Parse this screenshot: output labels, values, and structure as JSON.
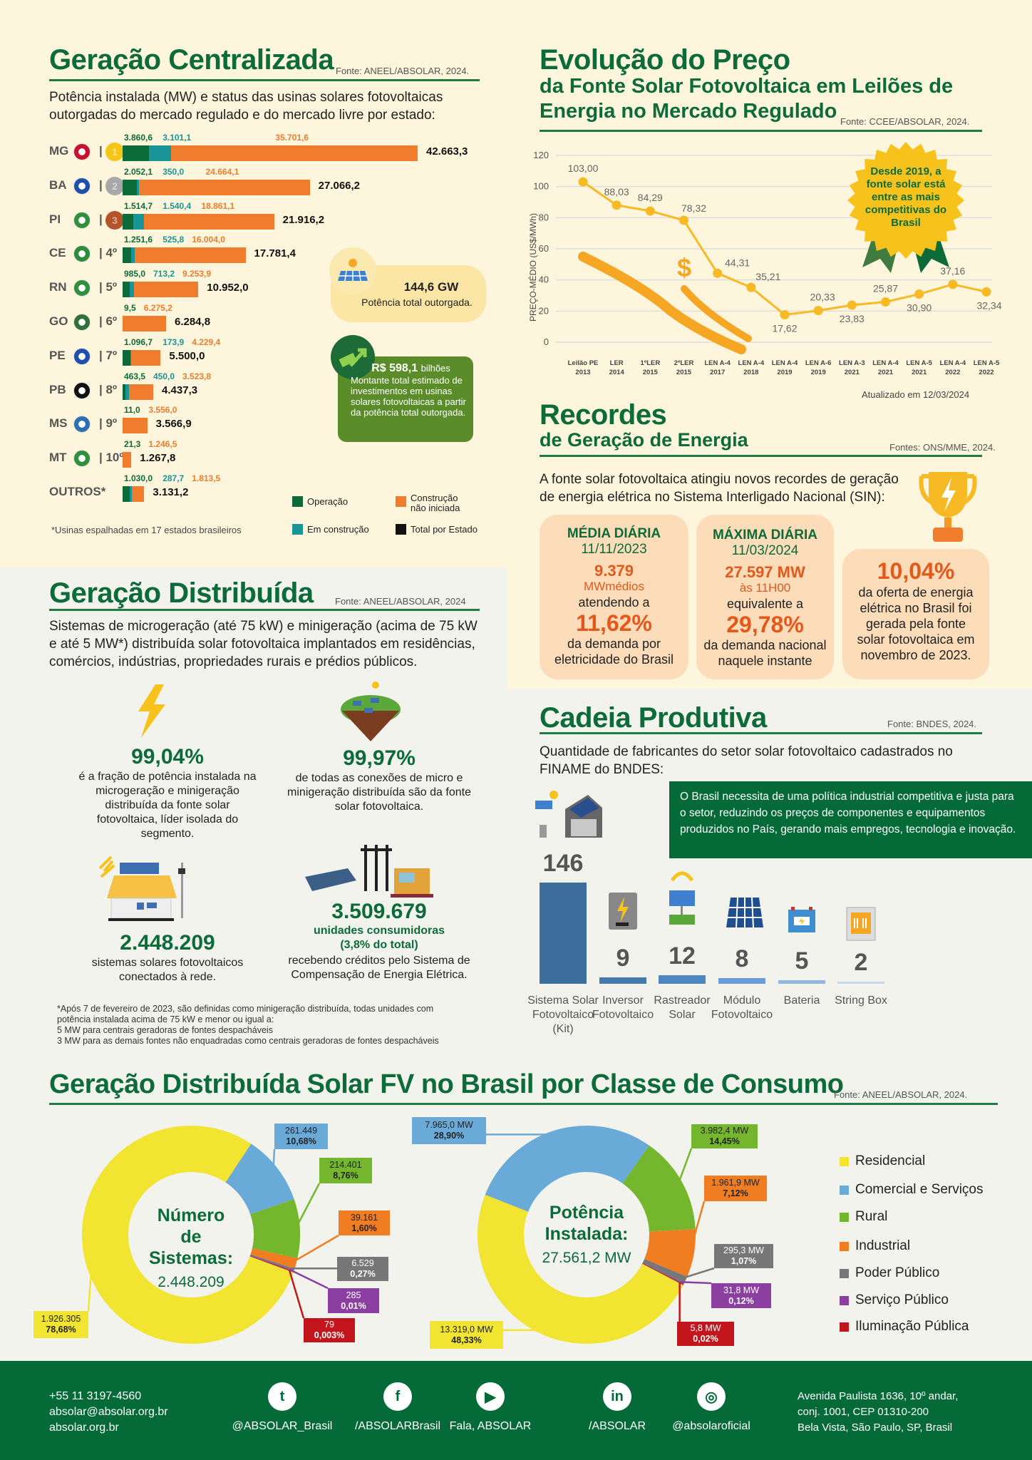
{
  "centralizada": {
    "title": "Geração Centralizada",
    "source": "Fonte: ANEEL/ABSOLAR, 2024.",
    "subtitle": "Potência instalada (MW) e status das usinas solares fotovoltaicas outorgadas do mercado regulado e do mercado livre por estado:",
    "ranks": [
      "1",
      "2",
      "3",
      "| 4º",
      "| 5º",
      "| 6º",
      "| 7º",
      "| 8º",
      "| 9º",
      "| 10º",
      ""
    ],
    "legend": {
      "operacao": "Operação",
      "nao_iniciada": "Construção não iniciada",
      "em_construcao": "Em construção",
      "total": "Total por Estado"
    },
    "footnote": "*Usinas espalhadas em 17 estados brasileiros",
    "callout_gw": {
      "value": "144,6 GW",
      "label": "Potência total outorgada."
    },
    "callout_invest": {
      "value": "R$ 598,1",
      "unit": "bilhões",
      "label": "Montante total estimado de investimentos em usinas solares fotovoltaicas a partir da potência total outorgada."
    },
    "colors": {
      "operacao": "#0d6b3a",
      "em_construcao": "#1a9597",
      "nao_iniciada": "#ef7d2d",
      "total": "#111111"
    }
  },
  "preco": {
    "title": "Evolução do Preço",
    "subtitle1": "da Fonte Solar Fotovoltaica em Leilões de",
    "subtitle2": "Energia no Mercado Regulado",
    "source": "Fonte: CCEE/ABSOLAR, 2024.",
    "updated": "Atualizado em 12/03/2024",
    "badge": "Desde 2019, a fonte solar está entre as mais competitivas do Brasil",
    "dollar": "$"
  },
  "recordes": {
    "title": "Recordes",
    "subtitle": "de Geração de Energia",
    "source": "Fontes: ONS/MME, 2024.",
    "intro": "A fonte solar fotovoltaica atingiu novos recordes de geração de energia elétrica no Sistema Interligado Nacional (SIN):",
    "media": {
      "head": "MÉDIA DIÁRIA",
      "date": "11/11/2023",
      "value": "9.379",
      "unit": "MWmédios",
      "pre": "atendendo a",
      "pct": "11,62%",
      "post": "da demanda por eletricidade do Brasil"
    },
    "maxima": {
      "head": "MÁXIMA DIÁRIA",
      "date": "11/03/2024",
      "value": "27.597 MW",
      "unit": "às 11H00",
      "pre": "equivalente a",
      "pct": "29,78%",
      "post": "da demanda nacional naquele instante"
    },
    "oferta": {
      "pct": "10,04%",
      "post": "da oferta de energia elétrica no Brasil foi gerada pela fonte solar fotovoltaica em novembro de 2023."
    }
  },
  "distribuida": {
    "title": "Geração Distribuída",
    "source": "Fonte: ANEEL/ABSOLAR, 2024",
    "intro": "Sistemas de microgeração (até 75 kW) e minigeração (acima de 75 kW e até  5 MW*) distribuída solar fotovoltaica implantados em residências, comércios, indústrias, propriedades rurais e prédios públicos.",
    "stat1": {
      "value": "99,04%",
      "desc": "é a fração de potência instalada na microgeração e minigeração distribuída da fonte solar fotovoltaica, líder isolada do segmento."
    },
    "stat2": {
      "value": "99,97%",
      "desc": "de todas as conexões de micro e minigeração distribuída são da fonte solar fotovoltaica."
    },
    "stat3": {
      "value": "2.448.209",
      "desc": "sistemas solares fotovoltaicos conectados à rede."
    },
    "stat4": {
      "value": "3.509.679",
      "sub1": "unidades consumidoras",
      "sub2": "(3,8% do total)",
      "desc": "recebendo créditos pelo Sistema de Compensação de Energia Elétrica."
    },
    "footnote": [
      "*Após 7 de fevereiro de 2023, são definidas como minigeração distribuída, todas unidades com",
      "potência instalada acima de 75 kW e menor ou igual a:",
      "5 MW para centrais geradoras de fontes despacháveis",
      "3 MW para as demais fontes não enquadradas como centrais geradoras de fontes despacháveis"
    ]
  },
  "cadeia": {
    "title": "Cadeia Produtiva",
    "source": "Fonte: BNDES, 2024.",
    "intro": "Quantidade de fabricantes do setor solar fotovoltaico cadastrados no FINAME do BNDES:",
    "box": "O Brasil necessita de uma política industrial competitiva e justa para o setor, reduzindo os preços de componentes e equipamentos produzidos no País, gerando mais empregos, tecnologia e inovação."
  },
  "classe": {
    "title": "Geração Distribuída Solar FV no Brasil por Classe de Consumo",
    "source": "Fonte: ANEEL/ABSOLAR, 2024."
  },
  "footer": {
    "phone": "+55 11 3197-4560",
    "email": "absolar@absolar.org.br",
    "site": "absolar.org.br",
    "social": [
      {
        "icon": "twitter-icon",
        "glyph": "t",
        "handle": "@ABSOLAR_Brasil"
      },
      {
        "icon": "facebook-icon",
        "glyph": "f",
        "handle": "/ABSOLARBrasil"
      },
      {
        "icon": "youtube-icon",
        "glyph": "▶",
        "handle": "Fala, ABSOLAR"
      },
      {
        "icon": "linkedin-icon",
        "glyph": "in",
        "handle": "/ABSOLAR"
      },
      {
        "icon": "instagram-icon",
        "glyph": "◎",
        "handle": "@absolaroficial"
      }
    ],
    "address": [
      "Avenida Paulista 1636, 10º andar,",
      "conj. 1001, CEP 01310-200",
      "Bela Vista, São Paulo, SP, Brasil"
    ]
  },
  "chart_data": [
    {
      "type": "bar",
      "stacked": true,
      "orientation": "horizontal",
      "categories": [
        "MG",
        "BA",
        "PI",
        "CE",
        "RN",
        "GO",
        "PE",
        "PB",
        "MS",
        "MT",
        "OUTROS*"
      ],
      "series": [
        {
          "name": "Operação",
          "values": [
            3860.6,
            2052.1,
            1514.7,
            1251.6,
            985.0,
            9.5,
            1096.7,
            463.5,
            11.0,
            21.3,
            1030.0
          ]
        },
        {
          "name": "Em construção",
          "values": [
            3101.1,
            350.0,
            1540.4,
            525.8,
            713.2,
            null,
            173.9,
            450.0,
            null,
            null,
            287.7
          ]
        },
        {
          "name": "Construção não iniciada",
          "values": [
            35701.6,
            24664.1,
            18861.1,
            16004.0,
            9253.9,
            6275.2,
            4229.4,
            3523.8,
            3556.0,
            1246.5,
            1813.5
          ]
        }
      ],
      "totals_name": "Total por Estado",
      "totals": [
        42663.3,
        27066.2,
        21916.2,
        17781.4,
        10952.0,
        6284.8,
        5500.0,
        4437.3,
        3566.9,
        1267.8,
        3131.2
      ],
      "unit": "MW"
    },
    {
      "type": "line",
      "categories": [
        "Leilão PE|2013",
        "LER|2014",
        "1ºLER|2015",
        "2ºLER|2015",
        "LEN A-4|2017",
        "LEN A-4|2018",
        "LEN A-4|2019",
        "LEN A-6|2019",
        "LEN A-3|2021",
        "LEN A-4|2021",
        "LEN A-5|2021",
        "LEN A-4|2022",
        "LEN A-5|2022"
      ],
      "values": [
        103.0,
        88.03,
        84.29,
        78.32,
        44.31,
        35.21,
        17.62,
        20.33,
        23.83,
        25.87,
        30.9,
        37.16,
        32.34
      ],
      "ylabel": "PREÇO-MÉDIO (US$/MWh)",
      "ylim": [
        0,
        120
      ],
      "yticks": [
        0,
        20,
        40,
        60,
        80,
        100,
        120
      ],
      "grid": true,
      "color": "#f7b924"
    },
    {
      "type": "bar",
      "categories": [
        "Sistema Solar Fotovoltaico (Kit)",
        "Inversor Fotovoltaico",
        "Rastreador Solar",
        "Módulo Fotovoltaico",
        "Bateria",
        "String Box"
      ],
      "values": [
        146,
        9,
        12,
        8,
        5,
        2
      ],
      "colors": [
        "#3e6e9c",
        "#4679ac",
        "#4f86c0",
        "#6a9bd2",
        "#93b8e0",
        "#c9d9ea"
      ]
    },
    {
      "type": "pie",
      "donut": true,
      "center_title": "Número de Sistemas:",
      "center_value": "2.448.209",
      "categories": [
        "Residencial",
        "Comercial e Serviços",
        "Rural",
        "Industrial",
        "Poder Público",
        "Serviço Público",
        "Iluminação Pública"
      ],
      "values": [
        1926305,
        261449,
        214401,
        39161,
        6529,
        285,
        79
      ],
      "labels": [
        "1.926.305",
        "261.449",
        "214.401",
        "39.161",
        "6.529",
        "285",
        "79"
      ],
      "percent_labels": [
        "78,68%",
        "10,68%",
        "8,76%",
        "1,60%",
        "0,27%",
        "0,01%",
        "0,003%"
      ]
    },
    {
      "type": "pie",
      "donut": true,
      "center_title": "Potência Instalada:",
      "center_value": "27.561,2 MW",
      "categories": [
        "Residencial",
        "Comercial e Serviços",
        "Rural",
        "Industrial",
        "Poder Público",
        "Serviço Público",
        "Iluminação Pública"
      ],
      "values": [
        13319.0,
        7965.0,
        3982.4,
        1961.9,
        295.3,
        31.8,
        5.8
      ],
      "labels": [
        "13.319,0 MW",
        "7.965,0 MW",
        "3.982,4 MW",
        "1.961,9 MW",
        "295,3 MW",
        "31,8 MW",
        "5,8 MW"
      ],
      "percent_labels": [
        "48,33%",
        "28,90%",
        "14,45%",
        "7,12%",
        "1,07%",
        "0,12%",
        "0,02%"
      ]
    }
  ],
  "legend_colors": [
    "#f2e531",
    "#6aaad9",
    "#74b72e",
    "#f07d22",
    "#777777",
    "#8b3fa0",
    "#c3161c"
  ],
  "legend": [
    "Residencial",
    "Comercial e Serviços",
    "Rural",
    "Industrial",
    "Poder Público",
    "Serviço Público",
    "Iluminação Pública"
  ]
}
